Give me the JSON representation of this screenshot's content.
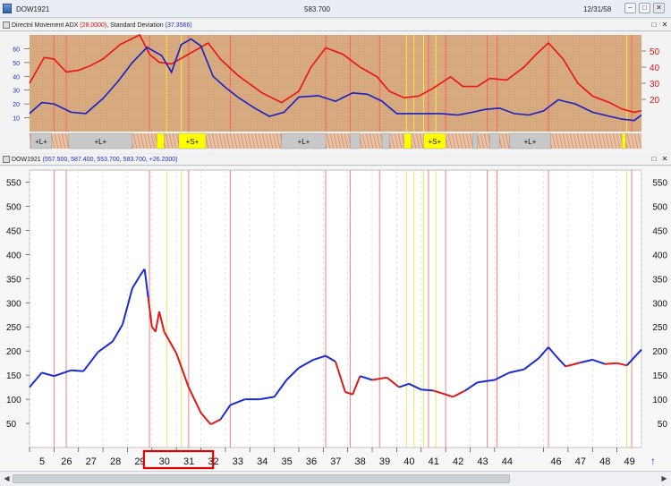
{
  "window": {
    "title": "DOW1921",
    "price": "583.700",
    "date": "12/31/58",
    "buttons": {
      "minimize": "–",
      "restore": "□",
      "close": "✕"
    }
  },
  "adx_panel": {
    "header_prefix": "Directnl Movement ADX",
    "adx_value": "(28.0000)",
    "header_mid": ", Standard Deviation",
    "sd_value": "(37.3566)",
    "left_ticks": [
      10,
      20,
      30,
      40,
      50,
      60
    ],
    "right_ticks": [
      20,
      30,
      40,
      50
    ],
    "signal_labels": [
      "+L+",
      "+L+",
      "+S+",
      "+L+",
      "+S+",
      "+L+"
    ],
    "colors": {
      "background": "#d7ab7f",
      "adx": "#ee1111",
      "sd": "#1520c8",
      "long": "#c8c8c8",
      "short": "#ffff00"
    }
  },
  "price_panel": {
    "header_title": "DOW1921",
    "header_values": "(557.500, 587.400, 553.700, 583.700, +26.2000)",
    "y_ticks": [
      50,
      100,
      150,
      200,
      250,
      300,
      350,
      400,
      450,
      500,
      550
    ],
    "colors": {
      "up": "#1a2ad8",
      "down": "#e01818",
      "red_line": "#f08080",
      "yellow_line": "#f0e060",
      "grid": "#d8d8d8"
    }
  },
  "x_axis": {
    "labels": [
      "5",
      "26",
      "27",
      "28",
      "29",
      "30",
      "31",
      "32",
      "33",
      "34",
      "35",
      "36",
      "37",
      "38",
      "39",
      "40",
      "41",
      "42",
      "43",
      "44",
      "46",
      "47",
      "48",
      "49"
    ],
    "highlight": [
      "30",
      "31",
      "32"
    ]
  },
  "chart_data": [
    {
      "type": "line",
      "title": "Directnl Movement ADX, Standard Deviation",
      "x_range": [
        1925,
        1950
      ],
      "ylim_left": [
        0,
        70
      ],
      "ylim_right": [
        0,
        60
      ],
      "series": [
        {
          "name": "Directnl Movement ADX",
          "axis": "right",
          "x": [
            1925,
            1925.6,
            1926,
            1926.5,
            1927,
            1927.5,
            1928,
            1928.7,
            1929.5,
            1929.9,
            1930.3,
            1930.8,
            1931.5,
            1932.3,
            1932.8,
            1933.5,
            1934.5,
            1935.3,
            1936,
            1936.5,
            1937.1,
            1937.8,
            1938.5,
            1939.2,
            1939.7,
            1940.3,
            1940.9,
            1941.5,
            1942.2,
            1942.7,
            1943.3,
            1943.8,
            1944.5,
            1945.2,
            1945.7,
            1946.2,
            1946.8,
            1947.4,
            1948,
            1948.7,
            1949.2,
            1949.7,
            1950
          ],
          "values": [
            30,
            46,
            45,
            37,
            38,
            41,
            45,
            54,
            60,
            48,
            43,
            42,
            48,
            55,
            45,
            35,
            24,
            18,
            25,
            40,
            52,
            48,
            40,
            34,
            25,
            21,
            22,
            27,
            34,
            28,
            28,
            33,
            32,
            40,
            48,
            55,
            45,
            30,
            22,
            18,
            14,
            12,
            13
          ]
        },
        {
          "name": "Standard Deviation",
          "axis": "left",
          "x": [
            1925,
            1925.5,
            1926,
            1926.7,
            1927.3,
            1928,
            1928.6,
            1929.2,
            1929.8,
            1930.4,
            1930.8,
            1931.2,
            1931.6,
            1932,
            1932.5,
            1933,
            1933.5,
            1934.2,
            1934.8,
            1935.4,
            1936,
            1936.8,
            1937.5,
            1938.2,
            1938.8,
            1939.4,
            1940,
            1940.5,
            1941.2,
            1941.8,
            1942.5,
            1943.1,
            1943.6,
            1944.2,
            1944.8,
            1945.4,
            1946,
            1946.6,
            1947.3,
            1948,
            1948.7,
            1949.2,
            1949.7,
            1950
          ],
          "values": [
            13,
            21,
            20,
            14,
            13,
            24,
            36,
            50,
            61,
            55,
            43,
            63,
            67,
            62,
            40,
            32,
            25,
            17,
            11,
            14,
            25,
            26,
            22,
            28,
            27,
            22,
            13,
            13,
            13,
            13,
            12,
            14,
            16,
            17,
            13,
            12,
            15,
            23,
            20,
            14,
            11,
            9,
            8,
            12
          ]
        }
      ]
    },
    {
      "type": "line",
      "title": "DOW1921",
      "x_range": [
        1925,
        1950
      ],
      "ylim": [
        0,
        575
      ],
      "series": [
        {
          "name": "DOW1921",
          "x": [
            1925,
            1925.5,
            1926,
            1926.7,
            1927.2,
            1927.8,
            1928.4,
            1928.8,
            1929.2,
            1929.5,
            1929.7,
            1929.85,
            1930,
            1930.15,
            1930.3,
            1930.5,
            1931,
            1931.5,
            1932,
            1932.4,
            1932.8,
            1933.2,
            1933.8,
            1934.4,
            1935,
            1935.5,
            1936,
            1936.6,
            1937.1,
            1937.5,
            1937.9,
            1938.2,
            1938.5,
            1939,
            1939.6,
            1940.1,
            1940.5,
            1941,
            1941.5,
            1942,
            1942.3,
            1942.8,
            1943.3,
            1944,
            1944.6,
            1945.2,
            1945.8,
            1946.2,
            1946.5,
            1946.9,
            1947.5,
            1948,
            1948.5,
            1949,
            1949.4,
            1950
          ],
          "values": [
            125,
            155,
            148,
            160,
            158,
            198,
            220,
            255,
            330,
            355,
            370,
            310,
            250,
            240,
            282,
            240,
            195,
            125,
            72,
            48,
            58,
            88,
            100,
            100,
            105,
            140,
            165,
            182,
            190,
            178,
            115,
            110,
            148,
            140,
            145,
            125,
            132,
            120,
            118,
            110,
            105,
            118,
            135,
            140,
            155,
            162,
            185,
            208,
            190,
            168,
            176,
            182,
            173,
            175,
            170,
            203
          ]
        }
      ]
    }
  ]
}
